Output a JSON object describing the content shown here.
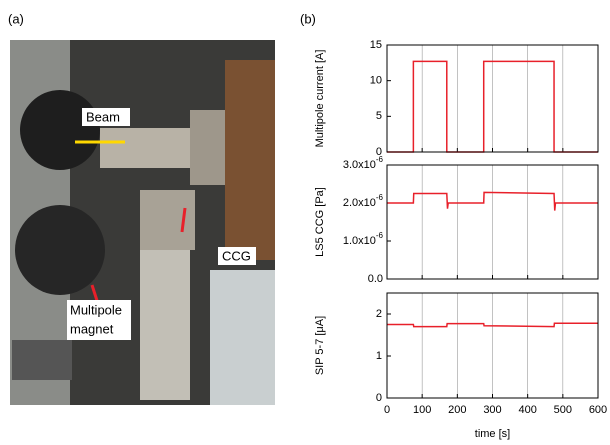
{
  "panel_a": {
    "label": "(a)",
    "beam": "Beam",
    "ccg": "CCG",
    "magnet": [
      "Multipole",
      "magnet"
    ]
  },
  "panel_b": {
    "label": "(b)"
  },
  "chart_data": [
    {
      "type": "line",
      "ylabel": "Multipole current [A]",
      "xlim": [
        0,
        600
      ],
      "xticks": [
        0,
        100,
        200,
        300,
        400,
        500,
        600
      ],
      "ylim": [
        0,
        15
      ],
      "yticks": [
        0,
        5,
        10,
        15
      ],
      "grid": "x",
      "series": [
        {
          "color": "#e8202a",
          "x": [
            0,
            75,
            75,
            170,
            170,
            275,
            275,
            475,
            475,
            600
          ],
          "values": [
            0,
            0,
            12.7,
            12.7,
            0,
            0,
            12.7,
            12.7,
            0,
            0
          ]
        }
      ]
    },
    {
      "type": "line",
      "ylabel": "LS5 CCG [Pa]",
      "xlim": [
        0,
        600
      ],
      "xticks": [
        0,
        100,
        200,
        300,
        400,
        500,
        600
      ],
      "ylim": [
        0,
        3e-06
      ],
      "yticks": [
        {
          "value": 0,
          "label": "0.0"
        },
        {
          "value": 1e-06,
          "label": "1.0x10",
          "exponent": "-6"
        },
        {
          "value": 2e-06,
          "label": "2.0x10",
          "exponent": "-6"
        },
        {
          "value": 3e-06,
          "label": "3.0x10",
          "exponent": "-6"
        }
      ],
      "grid": "x",
      "series": [
        {
          "color": "#e8202a",
          "x": [
            0,
            75,
            76,
            170,
            172,
            174,
            275,
            276,
            475,
            477,
            479,
            600
          ],
          "values": [
            2e-06,
            2e-06,
            2.25e-06,
            2.25e-06,
            1.85e-06,
            2e-06,
            2e-06,
            2.28e-06,
            2.25e-06,
            1.8e-06,
            2e-06,
            2e-06
          ]
        }
      ]
    },
    {
      "type": "line",
      "ylabel": "SIP 5-7 [μA]",
      "xlabel": "time [s]",
      "xlim": [
        0,
        600
      ],
      "xticks": [
        0,
        100,
        200,
        300,
        400,
        500,
        600
      ],
      "ylim": [
        0,
        2.5
      ],
      "yticks": [
        0,
        1,
        2
      ],
      "grid": "x",
      "series": [
        {
          "color": "#e8202a",
          "x": [
            0,
            75,
            76,
            170,
            171,
            275,
            276,
            475,
            476,
            600
          ],
          "values": [
            1.75,
            1.75,
            1.7,
            1.7,
            1.77,
            1.77,
            1.72,
            1.7,
            1.78,
            1.78
          ]
        }
      ]
    }
  ]
}
